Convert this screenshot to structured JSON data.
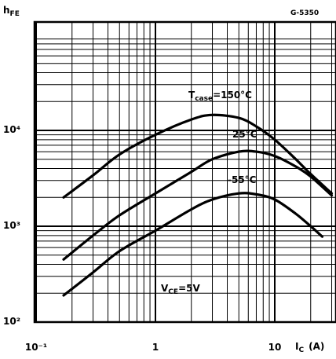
{
  "figure_id": "G-5350",
  "chart_data": {
    "type": "line",
    "x_scale": "log",
    "y_scale": "log",
    "xlim": [
      0.1,
      30
    ],
    "ylim": [
      100,
      50000
    ],
    "grid": true,
    "ylabel": {
      "main": "h",
      "sub": "FE"
    },
    "xlabel": {
      "main": "I",
      "sub": "C",
      "unit": "(A)"
    },
    "x_ticks": [
      {
        "value": 0.1,
        "label": "10⁻¹"
      },
      {
        "value": 1,
        "label": "1"
      },
      {
        "value": 10,
        "label": "10"
      }
    ],
    "y_ticks": [
      {
        "value": 100,
        "label": "10²"
      },
      {
        "value": 1000,
        "label": "10³"
      },
      {
        "value": 10000,
        "label": "10⁴"
      }
    ],
    "annotation": {
      "main": "V",
      "sub": "CE",
      "rest": "=5V"
    },
    "series": [
      {
        "label_main": "T",
        "label_sub": "case",
        "label_rest": "=150°C",
        "points": [
          [
            0.17,
            2000
          ],
          [
            0.3,
            3400
          ],
          [
            0.5,
            5600
          ],
          [
            1,
            9000
          ],
          [
            2,
            13000
          ],
          [
            3,
            14500
          ],
          [
            5,
            13500
          ],
          [
            7,
            11000
          ],
          [
            10,
            8000
          ],
          [
            15,
            5000
          ],
          [
            20,
            3500
          ],
          [
            30,
            2200
          ]
        ]
      },
      {
        "label_main": "25°C",
        "label_sub": "",
        "label_rest": "",
        "points": [
          [
            0.17,
            450
          ],
          [
            0.3,
            800
          ],
          [
            0.5,
            1300
          ],
          [
            1,
            2200
          ],
          [
            2,
            3700
          ],
          [
            3,
            5000
          ],
          [
            5,
            6000
          ],
          [
            7,
            6000
          ],
          [
            10,
            5400
          ],
          [
            15,
            4200
          ],
          [
            20,
            3300
          ],
          [
            30,
            2100
          ]
        ]
      },
      {
        "label_main": "-55°C",
        "label_sub": "",
        "label_rest": "",
        "points": [
          [
            0.17,
            190
          ],
          [
            0.3,
            330
          ],
          [
            0.5,
            550
          ],
          [
            1,
            900
          ],
          [
            2,
            1500
          ],
          [
            3,
            1900
          ],
          [
            5,
            2200
          ],
          [
            7,
            2150
          ],
          [
            10,
            1900
          ],
          [
            15,
            1350
          ],
          [
            20,
            1000
          ],
          [
            25,
            780
          ]
        ]
      }
    ]
  }
}
